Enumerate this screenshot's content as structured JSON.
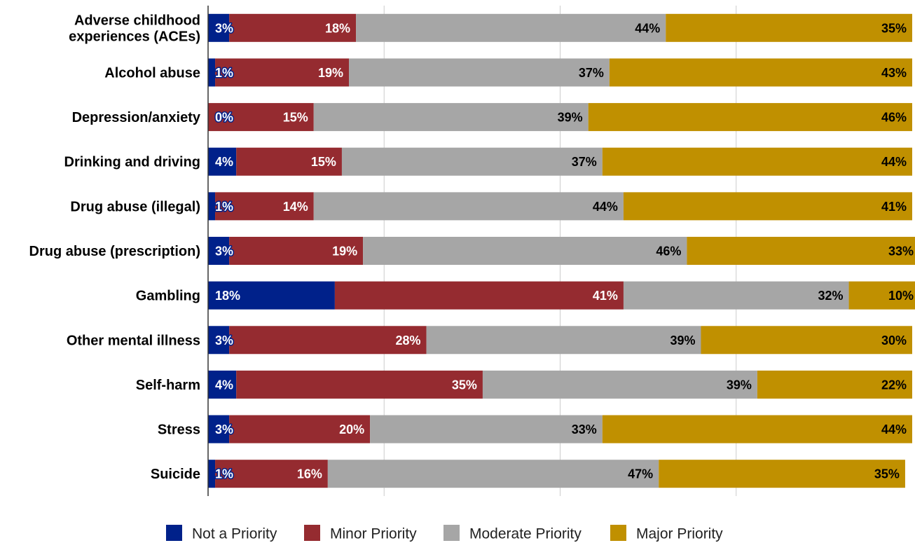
{
  "chart_data": {
    "type": "bar",
    "orientation": "horizontal",
    "stacked": true,
    "percent_stacked": true,
    "title": "",
    "xlabel": "",
    "ylabel": "",
    "xlim": [
      0,
      100
    ],
    "grid": true,
    "legend_position": "bottom",
    "categories": [
      [
        "Adverse childhood",
        "experiences (ACEs)"
      ],
      [
        "Alcohol abuse"
      ],
      [
        "Depression/anxiety"
      ],
      [
        "Drinking and driving"
      ],
      [
        "Drug abuse (illegal)"
      ],
      [
        "Drug abuse (prescription)"
      ],
      [
        "Gambling"
      ],
      [
        "Other mental illness"
      ],
      [
        "Self-harm"
      ],
      [
        "Stress"
      ],
      [
        "Suicide"
      ]
    ],
    "series": [
      {
        "name": "Not a Priority",
        "color": "#00218a",
        "label_color": "#ffffff",
        "label_outline": "#00218a",
        "values": [
          3,
          1,
          0,
          4,
          1,
          3,
          18,
          3,
          4,
          3,
          1
        ],
        "labels": [
          "3%",
          "1%",
          "0%",
          "4%",
          "1%",
          "3%",
          "18%",
          "3%",
          "4%",
          "3%",
          "1%"
        ]
      },
      {
        "name": "Minor Priority",
        "color": "#952b30",
        "label_color": "#ffffff",
        "label_outline": "",
        "values": [
          18,
          19,
          15,
          15,
          14,
          19,
          41,
          28,
          35,
          20,
          16
        ],
        "labels": [
          "18%",
          "19%",
          "15%",
          "15%",
          "14%",
          "19%",
          "41%",
          "28%",
          "35%",
          "20%",
          "16%"
        ]
      },
      {
        "name": "Moderate Priority",
        "color": "#a6a6a6",
        "label_color": "#000000",
        "label_outline": "",
        "values": [
          44,
          37,
          39,
          37,
          44,
          46,
          32,
          39,
          39,
          33,
          47
        ],
        "labels": [
          "44%",
          "37%",
          "39%",
          "37%",
          "44%",
          "46%",
          "32%",
          "39%",
          "39%",
          "33%",
          "47%"
        ]
      },
      {
        "name": "Major Priority",
        "color": "#c09000",
        "label_color": "#000000",
        "label_outline": "",
        "values": [
          35,
          43,
          46,
          44,
          41,
          33,
          10,
          30,
          22,
          44,
          35
        ],
        "labels": [
          "35%",
          "43%",
          "46%",
          "44%",
          "41%",
          "33%",
          "10%",
          "30%",
          "22%",
          "44%",
          "35%"
        ]
      }
    ]
  }
}
